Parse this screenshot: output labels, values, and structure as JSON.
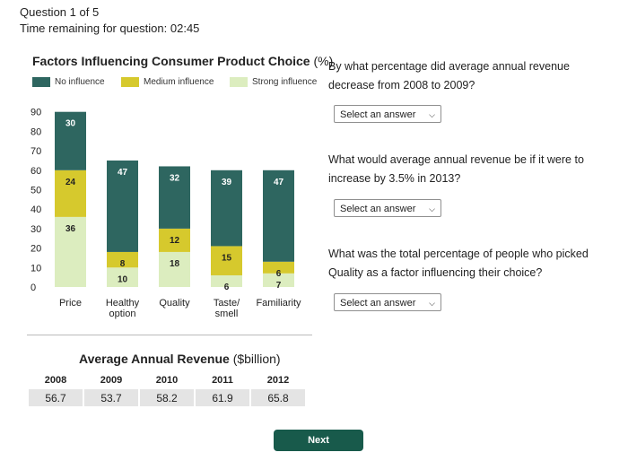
{
  "header": {
    "question_counter": "Question 1 of 5",
    "timer": "Time remaining for question: 02:45"
  },
  "chart": {
    "title": "Factors Influencing Consumer Product Choice",
    "unit": "(%)",
    "legend": [
      "No influence",
      "Medium influence",
      "Strong influence"
    ]
  },
  "colors": {
    "no_influence": "#2e6660",
    "medium_influence": "#d6c92d",
    "strong_influence": "#dcedbf",
    "next_button": "#185a4b"
  },
  "chart_data": {
    "type": "bar",
    "stacked": true,
    "title": "Factors Influencing Consumer Product Choice (%)",
    "categories": [
      "Price",
      "Healthy option",
      "Quality",
      "Taste/ smell",
      "Familiarity"
    ],
    "category_lines": [
      [
        "Price"
      ],
      [
        "Healthy",
        "option"
      ],
      [
        "Quality"
      ],
      [
        "Taste/",
        "smell"
      ],
      [
        "Familiarity"
      ]
    ],
    "series": [
      {
        "name": "Strong influence",
        "values": [
          36,
          10,
          18,
          6,
          7
        ]
      },
      {
        "name": "Medium influence",
        "values": [
          24,
          8,
          12,
          15,
          6
        ]
      },
      {
        "name": "No influence",
        "values": [
          30,
          47,
          32,
          39,
          47
        ]
      }
    ],
    "ylim": [
      0,
      90
    ],
    "yticks": [
      0,
      10,
      20,
      30,
      40,
      50,
      60,
      70,
      80,
      90
    ],
    "legend_position": "top"
  },
  "revenue_table": {
    "title": "Average Annual Revenue",
    "unit": "($billion)",
    "years": [
      "2008",
      "2009",
      "2010",
      "2011",
      "2012"
    ],
    "values": [
      "56.7",
      "53.7",
      "58.2",
      "61.9",
      "65.8"
    ]
  },
  "questions": [
    {
      "text": "By what percentage did average annual revenue decrease from 2008 to 2009?",
      "select_value": "Select an answer"
    },
    {
      "text": "What would average annual revenue be if it were to increase by 3.5% in 2013?",
      "select_value": "Select an answer"
    },
    {
      "text": "What was the total percentage of people who picked Quality as a factor influencing their choice?",
      "select_value": "Select an answer"
    }
  ],
  "next_label": "Next"
}
